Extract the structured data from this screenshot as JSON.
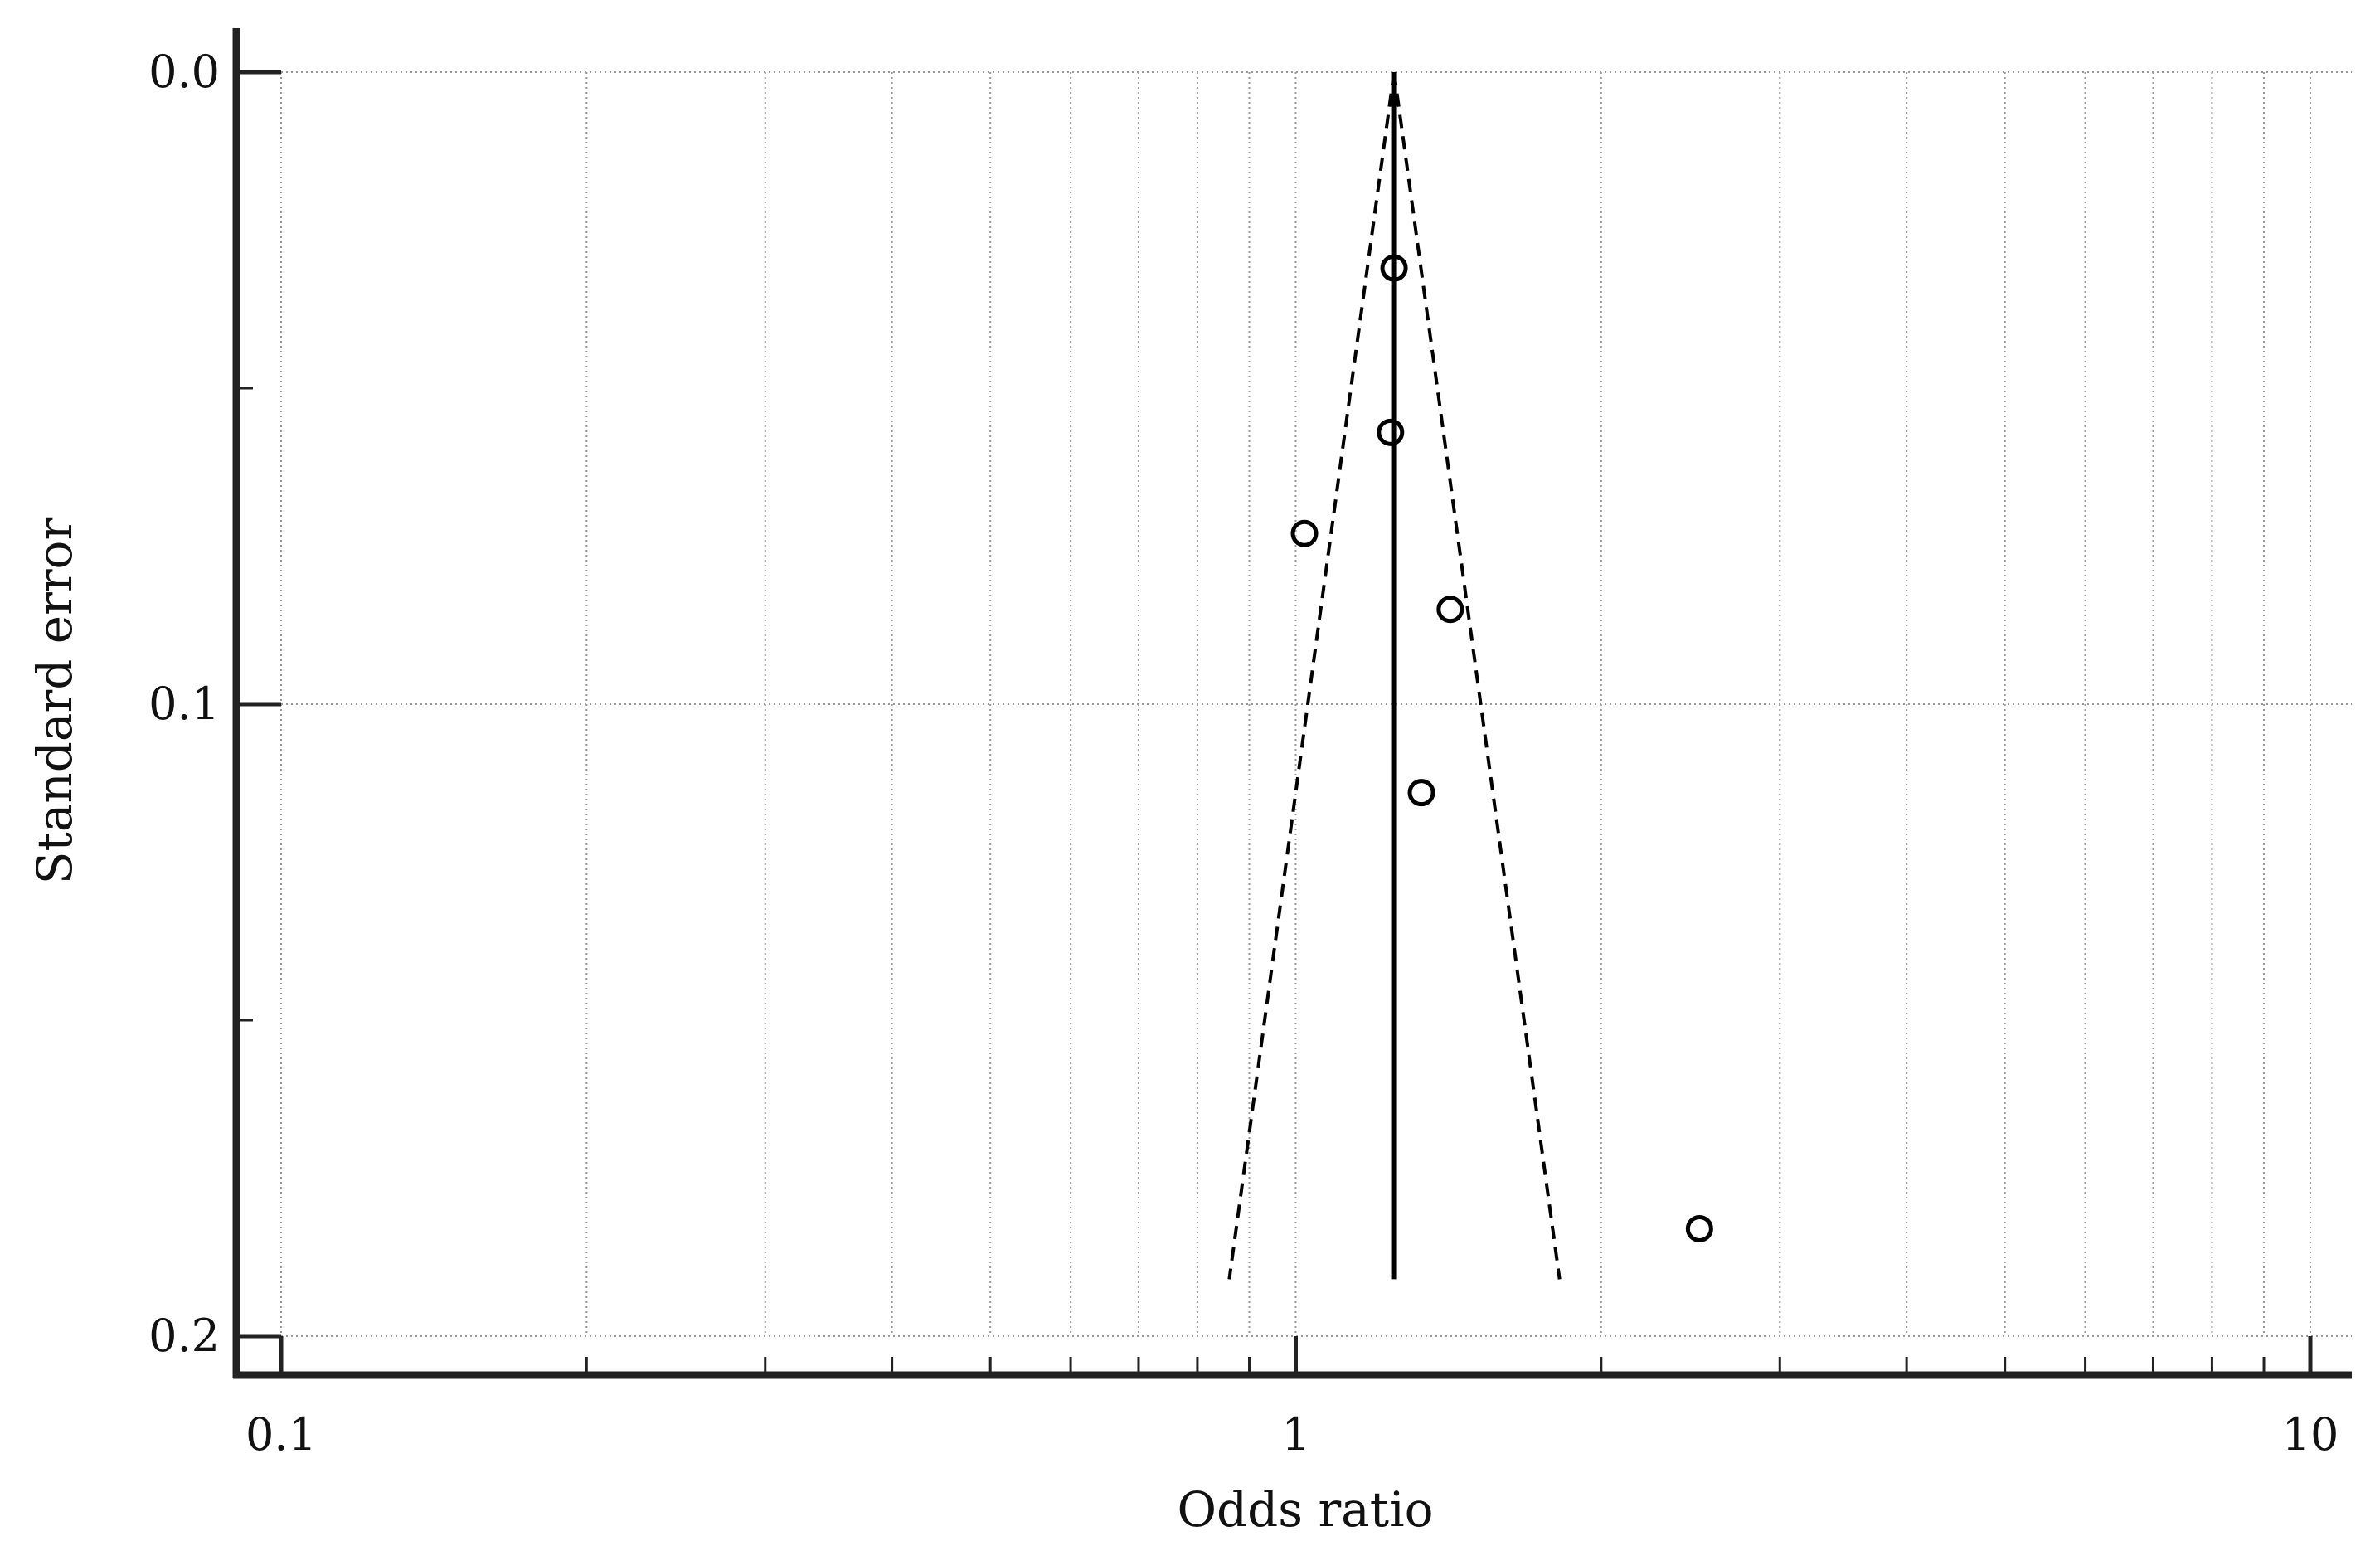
{
  "chart_data": {
    "type": "scatter",
    "title": "",
    "xlabel": "Odds ratio",
    "ylabel": "Standard error",
    "x_scale": "log",
    "xlim": [
      0.1,
      10
    ],
    "ylim": [
      0.0,
      0.2
    ],
    "y_inverted": true,
    "x_ticks": [
      {
        "value": 0.1,
        "label": "0.1"
      },
      {
        "value": 1,
        "label": "1"
      },
      {
        "value": 10,
        "label": "10"
      }
    ],
    "y_ticks": [
      {
        "value": 0.0,
        "label": "0.0"
      },
      {
        "value": 0.1,
        "label": "0.1"
      },
      {
        "value": 0.2,
        "label": "0.2"
      }
    ],
    "y_minor_ticks": [
      0.05,
      0.15
    ],
    "grid": true,
    "pooled_estimate": 1.25,
    "pseudo_ci": {
      "se_max": 0.191,
      "lower_at_se_max": 0.86,
      "upper_at_se_max": 1.82
    },
    "points": [
      {
        "x": 1.25,
        "y": 0.031
      },
      {
        "x": 1.24,
        "y": 0.057
      },
      {
        "x": 1.02,
        "y": 0.073
      },
      {
        "x": 1.42,
        "y": 0.085
      },
      {
        "x": 1.33,
        "y": 0.114
      },
      {
        "x": 2.5,
        "y": 0.183
      }
    ]
  }
}
